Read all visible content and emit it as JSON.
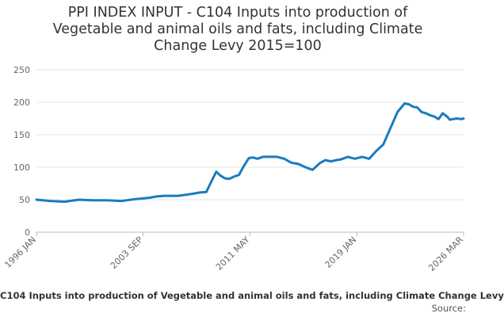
{
  "chart_data": {
    "type": "line",
    "title_lines": [
      "PPI INDEX INPUT - C104 Inputs into production of",
      "Vegetable and animal oils and fats, including Climate",
      "Change Levy 2015=100"
    ],
    "caption": "C104 Inputs into production of Vegetable and animal oils and fats, including Climate Change Levy",
    "source": "Source:",
    "xlabel": "",
    "ylabel": "",
    "ylim": [
      0,
      250
    ],
    "y_ticks": [
      "0",
      "50",
      "100",
      "150",
      "200",
      "250"
    ],
    "x_tick_labels": [
      "1996 JAN",
      "2003 SEP",
      "2011 MAY",
      "2019 JAN",
      "2026 MAR"
    ],
    "x_range_start": 1996.0,
    "x_range_end": 2026.17,
    "grid": true,
    "series": [
      {
        "name": "C104 Inputs into production of Vegetable and animal oils and fats, including Climate Change Levy",
        "color": "#1a7bbf",
        "x": [
          1996.0,
          1997.0,
          1998.0,
          1999.0,
          2000.0,
          2001.0,
          2002.0,
          2003.0,
          2004.0,
          2004.5,
          2005.0,
          2006.0,
          2007.0,
          2007.5,
          2008.0,
          2008.4,
          2008.7,
          2009.0,
          2009.3,
          2009.6,
          2010.0,
          2010.3,
          2010.6,
          2011.0,
          2011.3,
          2011.6,
          2012.0,
          2012.5,
          2013.0,
          2013.5,
          2014.0,
          2014.5,
          2015.0,
          2015.5,
          2016.0,
          2016.4,
          2016.8,
          2017.2,
          2017.5,
          2018.0,
          2018.5,
          2019.0,
          2019.5,
          2020.0,
          2020.5,
          2021.0,
          2021.5,
          2022.0,
          2022.3,
          2022.6,
          2022.9,
          2023.2,
          2023.5,
          2023.8,
          2024.1,
          2024.4,
          2024.7,
          2025.0,
          2025.2,
          2025.4,
          2025.7,
          2026.0,
          2026.17
        ],
        "values": [
          50,
          48,
          47,
          50,
          49,
          49,
          48,
          51,
          53,
          55,
          56,
          56,
          59,
          61,
          62,
          80,
          93,
          87,
          83,
          82,
          86,
          88,
          100,
          114,
          115,
          113,
          116,
          116,
          116,
          113,
          107,
          105,
          100,
          96,
          106,
          111,
          109,
          111,
          112,
          116,
          113,
          116,
          113,
          125,
          135,
          160,
          185,
          198,
          197,
          193,
          192,
          185,
          183,
          180,
          178,
          174,
          183,
          178,
          173,
          174,
          175,
          174,
          175
        ]
      }
    ]
  }
}
